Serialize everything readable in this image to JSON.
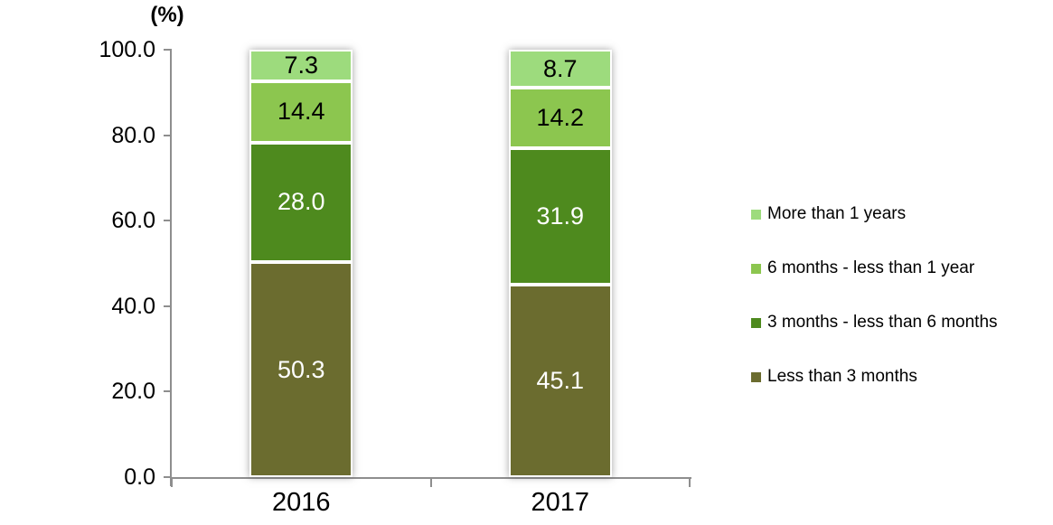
{
  "chart_data": {
    "type": "bar",
    "stacked": true,
    "ylabel": "(%)",
    "xlabel": "",
    "ylim": [
      0,
      100
    ],
    "ytick_values": [
      0,
      20,
      40,
      60,
      80,
      100
    ],
    "ytick_decimals": 1,
    "grid": false,
    "legend_position": "right",
    "axis_color": "#8e8e8e",
    "categories": [
      "2016",
      "2017"
    ],
    "series": [
      {
        "name": "Less than 3 months",
        "color": "#6b6c2f",
        "label_color": "#ffffff",
        "values": [
          50.3,
          45.1
        ]
      },
      {
        "name": "3 months - less than 6 months",
        "color": "#4e8a1e",
        "label_color": "#ffffff",
        "values": [
          28.0,
          31.9
        ]
      },
      {
        "name": "6 months - less than 1 year",
        "color": "#8cc64f",
        "label_color": "#000000",
        "values": [
          14.4,
          14.2
        ]
      },
      {
        "name": "More than 1 years",
        "color": "#9ddb7d",
        "label_color": "#000000",
        "values": [
          7.3,
          8.7
        ]
      }
    ]
  }
}
